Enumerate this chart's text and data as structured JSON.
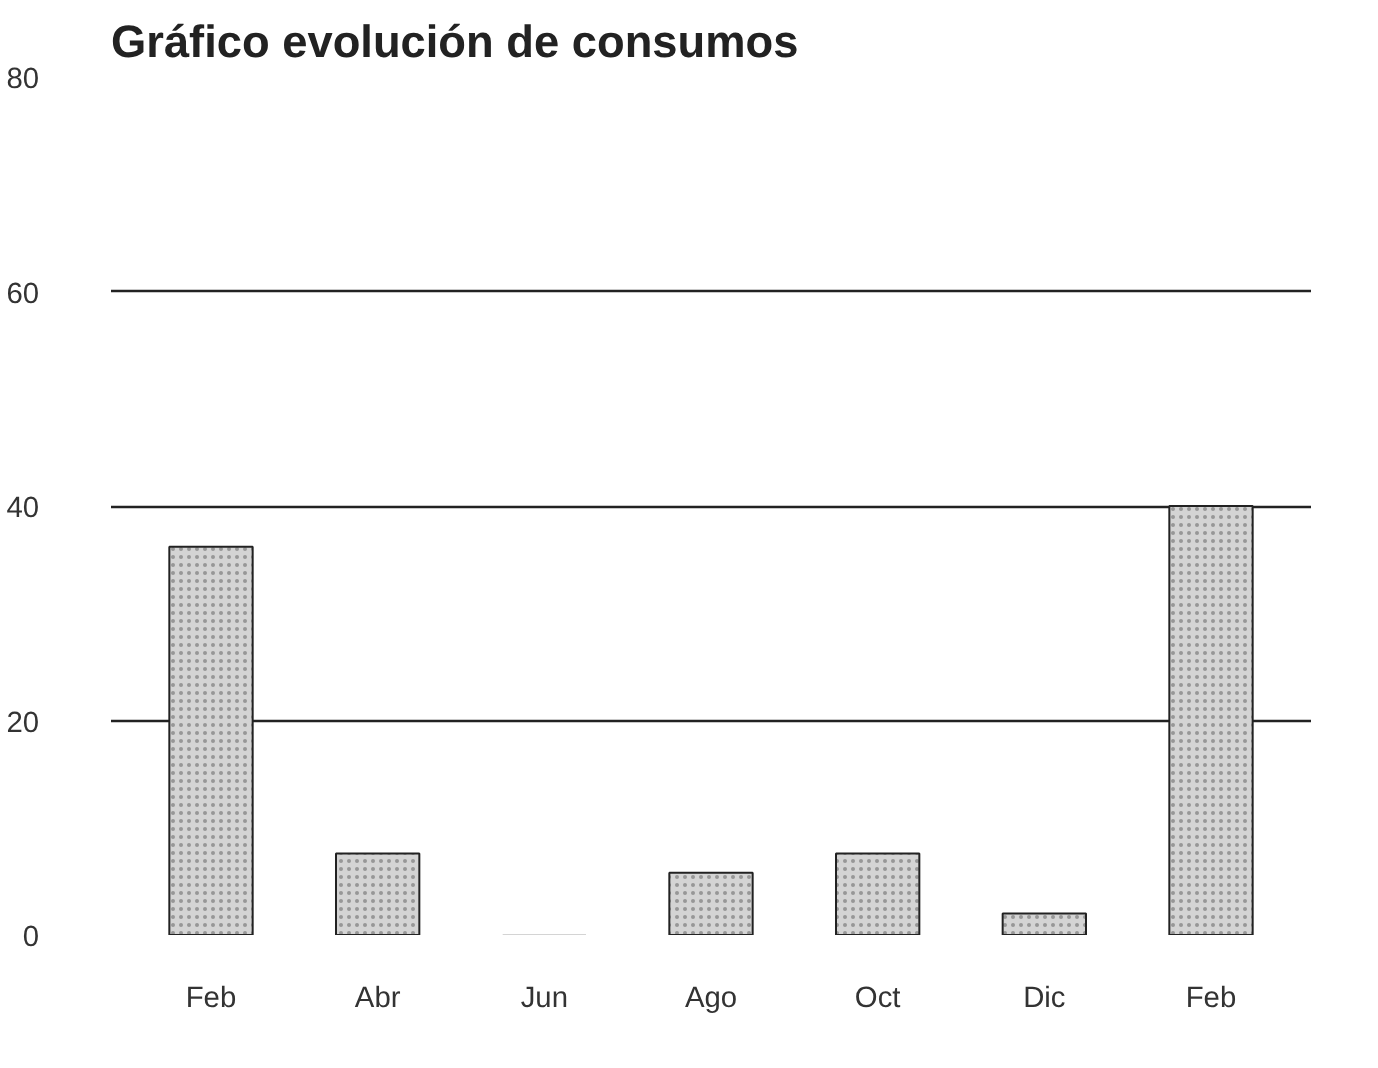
{
  "chart_data": {
    "type": "bar",
    "title": "Gráfico evolución de consumos",
    "categories": [
      "Feb",
      "Abr",
      "Jun",
      "Ago",
      "Oct",
      "Dic",
      "Feb"
    ],
    "values": [
      36.2,
      7.6,
      0,
      5.8,
      7.6,
      2.0,
      40
    ],
    "color": "#d4d4d4",
    "ylim": [
      0,
      80
    ],
    "yticks": [
      0,
      20,
      40,
      60,
      80
    ],
    "grid": "y"
  }
}
